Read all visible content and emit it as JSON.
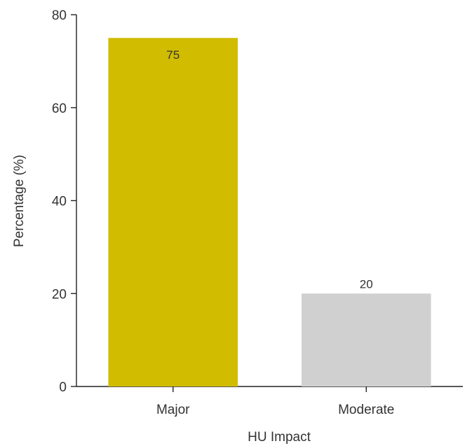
{
  "chart_data": {
    "type": "bar",
    "title": "",
    "xlabel": "HU Impact",
    "ylabel": "Percentage (%)",
    "categories": [
      "Major",
      "Moderate"
    ],
    "values": [
      75,
      20
    ],
    "data_labels": [
      "75",
      "20"
    ],
    "bar_colors": [
      "#d1bc00",
      "#d0d0d0"
    ],
    "ylim": [
      0,
      80
    ],
    "yticks": [
      0,
      20,
      40,
      60,
      80
    ],
    "grid": false,
    "legend": "none"
  }
}
